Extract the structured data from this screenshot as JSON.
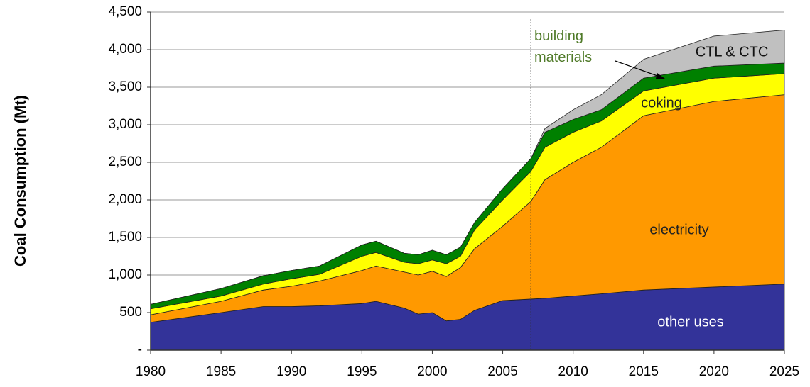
{
  "chart_data": {
    "type": "stacked_area",
    "y_label": "Coal Consumption (Mt)",
    "x": [
      1980,
      1985,
      1988,
      1990,
      1992,
      1995,
      1996,
      1998,
      1999,
      2000,
      2001,
      2002,
      2003,
      2005,
      2007,
      2008,
      2010,
      2012,
      2015,
      2020,
      2025
    ],
    "series": [
      {
        "name": "other uses",
        "color": "#333399",
        "values": [
          370,
          500,
          580,
          580,
          590,
          620,
          650,
          560,
          480,
          500,
          390,
          410,
          530,
          660,
          680,
          690,
          720,
          750,
          800,
          840,
          880
        ]
      },
      {
        "name": "electricity",
        "color": "#ff9900",
        "values": [
          100,
          150,
          220,
          270,
          330,
          440,
          470,
          480,
          520,
          550,
          590,
          690,
          820,
          990,
          1300,
          1580,
          1780,
          1950,
          2320,
          2470,
          2520
        ]
      },
      {
        "name": "coking",
        "color": "#ffff00",
        "values": [
          80,
          70,
          80,
          100,
          90,
          190,
          180,
          130,
          150,
          150,
          170,
          150,
          250,
          350,
          400,
          430,
          400,
          350,
          330,
          310,
          280
        ]
      },
      {
        "name": "building materials",
        "color": "#008000",
        "values": [
          60,
          100,
          110,
          110,
          110,
          150,
          150,
          120,
          120,
          130,
          120,
          120,
          100,
          150,
          170,
          200,
          170,
          150,
          170,
          160,
          140
        ]
      },
      {
        "name": "CTL & CTC",
        "color": "#c0c0c0",
        "values": [
          0,
          0,
          0,
          0,
          0,
          0,
          0,
          0,
          0,
          0,
          0,
          0,
          0,
          0,
          0,
          50,
          130,
          200,
          250,
          400,
          440
        ]
      }
    ],
    "xlim": [
      1980,
      2025
    ],
    "xticks": [
      1980,
      1985,
      1990,
      1995,
      2000,
      2005,
      2010,
      2015,
      2020,
      2025
    ],
    "ylim": [
      0,
      4500
    ],
    "yticks": [
      {
        "value": 0,
        "label": "-"
      },
      500,
      {
        "value": 1000,
        "label": "1,000"
      },
      {
        "value": 1500,
        "label": "1,500"
      },
      {
        "value": 2000,
        "label": "2,000"
      },
      {
        "value": 2500,
        "label": "2,500"
      },
      {
        "value": 3000,
        "label": "3,000"
      },
      {
        "value": 3500,
        "label": "3,500"
      },
      {
        "value": 4000,
        "label": "4,000"
      },
      {
        "value": 4500,
        "label": "4,500"
      }
    ],
    "grid": true,
    "vline_x": 2007
  }
}
